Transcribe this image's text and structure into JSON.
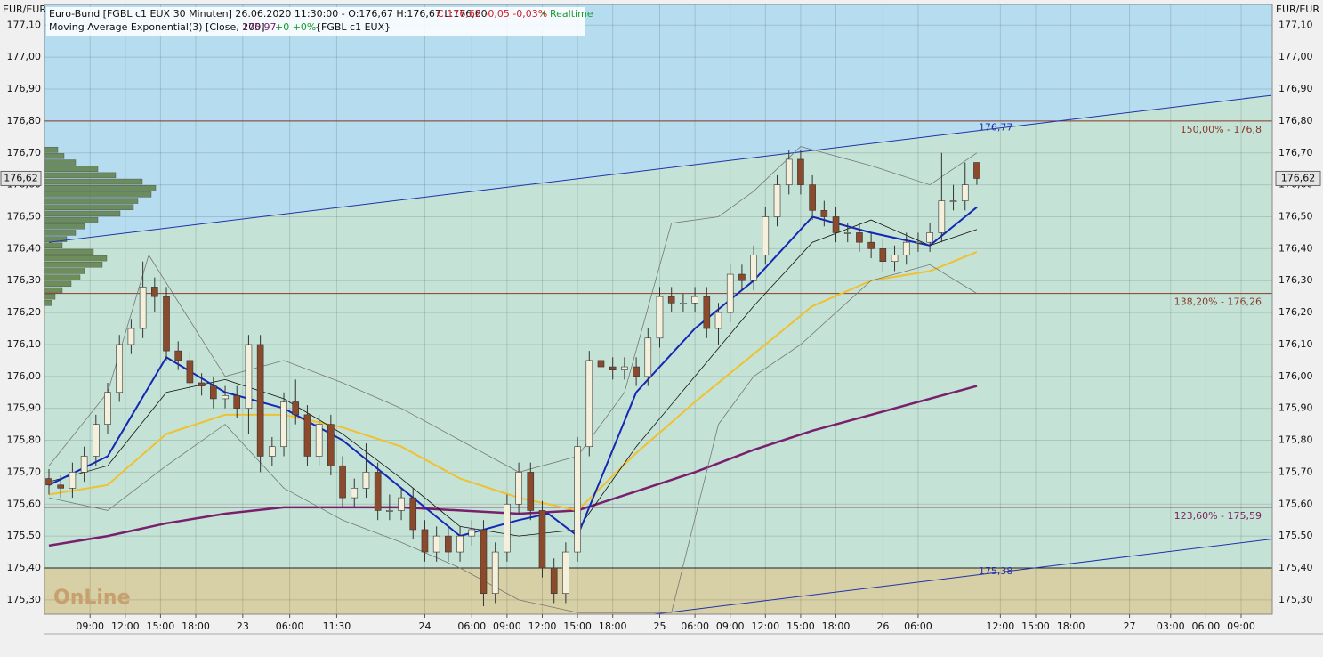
{
  "chart_data": {
    "type": "candlestick",
    "title": "Euro-Bund [FGBL c1 EUX 30 Minuten] 26.06.2020 11:30:00 - O:176,67 H:176,67 L:176,60",
    "title_close": "C:176,62 -0,05 -0,03%",
    "title_status": "• Realtime",
    "subtitle": "Moving Average Exponential(3) [Close, 200]",
    "subtitle_value": "175,97",
    "subtitle_change": "+0 +0%",
    "subtitle_symbol": "{FGBL c1 EUX}",
    "axis_unit": "EUR/EUR",
    "last_price_label": "176,62",
    "logo": "OnLine",
    "ylim": [
      175.255,
      177.165
    ],
    "yticks": [
      {
        "value": 175.3,
        "label": "175,30"
      },
      {
        "value": 175.4,
        "label": "175,40"
      },
      {
        "value": 175.5,
        "label": "175,50"
      },
      {
        "value": 175.6,
        "label": "175,60"
      },
      {
        "value": 175.7,
        "label": "175,70"
      },
      {
        "value": 175.8,
        "label": "175,80"
      },
      {
        "value": 175.9,
        "label": "175,90"
      },
      {
        "value": 176,
        "label": "176,00"
      },
      {
        "value": 176.1,
        "label": "176,10"
      },
      {
        "value": 176.2,
        "label": "176,20"
      },
      {
        "value": 176.3,
        "label": "176,30"
      },
      {
        "value": 176.4,
        "label": "176,40"
      },
      {
        "value": 176.5,
        "label": "176,50"
      },
      {
        "value": 176.6,
        "label": "176,60"
      },
      {
        "value": 176.7,
        "label": "176,70"
      },
      {
        "value": 176.8,
        "label": "176,80"
      },
      {
        "value": 176.9,
        "label": "176,90"
      },
      {
        "value": 177,
        "label": "177,00"
      },
      {
        "value": 177.1,
        "label": "177,10"
      }
    ],
    "xlim": [
      0,
      208
    ],
    "xticks": [
      {
        "value": 7,
        "label": "09:00"
      },
      {
        "value": 13,
        "label": "12:00"
      },
      {
        "value": 19,
        "label": "15:00"
      },
      {
        "value": 25,
        "label": "18:00"
      },
      {
        "value": 33,
        "label": "23"
      },
      {
        "value": 41,
        "label": "06:00"
      },
      {
        "value": 49,
        "label": "11:30"
      },
      {
        "value": 64,
        "label": "24"
      },
      {
        "value": 72,
        "label": "06:00"
      },
      {
        "value": 78,
        "label": "09:00"
      },
      {
        "value": 84,
        "label": "12:00"
      },
      {
        "value": 90,
        "label": "15:00"
      },
      {
        "value": 96,
        "label": "18:00"
      },
      {
        "value": 104,
        "label": "25"
      },
      {
        "value": 110,
        "label": "06:00"
      },
      {
        "value": 116,
        "label": "09:00"
      },
      {
        "value": 122,
        "label": "12:00"
      },
      {
        "value": 128,
        "label": "15:00"
      },
      {
        "value": 134,
        "label": "18:00"
      },
      {
        "value": 142,
        "label": "26"
      },
      {
        "value": 148,
        "label": "06:00"
      },
      {
        "value": 162,
        "label": "12:00"
      },
      {
        "value": 168,
        "label": "15:00"
      },
      {
        "value": 174,
        "label": "18:00"
      },
      {
        "value": 184,
        "label": "27"
      },
      {
        "value": 191,
        "label": "03:00"
      },
      {
        "value": 197,
        "label": "06:00"
      },
      {
        "value": 203,
        "label": "09:00"
      }
    ],
    "grid": true,
    "candles": {
      "x": [
        0,
        2,
        4,
        6,
        8,
        10,
        12,
        14,
        16,
        18,
        20,
        22,
        24,
        26,
        28,
        30,
        32,
        34,
        36,
        38,
        40,
        42,
        44,
        46,
        48,
        50,
        52,
        54,
        56,
        58,
        60,
        62,
        64,
        66,
        68,
        70,
        72,
        74,
        76,
        78,
        80,
        82,
        84,
        86,
        88,
        90,
        92,
        94,
        96,
        98,
        100,
        102,
        104,
        106,
        108,
        110,
        112,
        114,
        116,
        118,
        120,
        122,
        124,
        126,
        128,
        130,
        132,
        134,
        136,
        138,
        140,
        142,
        144,
        146,
        148,
        150,
        152,
        154,
        156,
        158
      ],
      "open": [
        175.68,
        175.66,
        175.65,
        175.7,
        175.75,
        175.85,
        175.95,
        176.1,
        176.15,
        176.28,
        176.25,
        176.08,
        176.05,
        175.98,
        175.97,
        175.93,
        175.94,
        175.9,
        176.1,
        175.75,
        175.78,
        175.92,
        175.88,
        175.75,
        175.85,
        175.72,
        175.62,
        175.65,
        175.7,
        175.58,
        175.58,
        175.62,
        175.52,
        175.45,
        175.5,
        175.45,
        175.5,
        175.52,
        175.32,
        175.45,
        175.6,
        175.7,
        175.58,
        175.4,
        175.32,
        175.45,
        175.78,
        176.05,
        176.03,
        176.02,
        176.03,
        176.0,
        176.12,
        176.25,
        176.23,
        176.23,
        176.25,
        176.15,
        176.2,
        176.32,
        176.3,
        176.38,
        176.5,
        176.6,
        176.68,
        176.6,
        176.52,
        176.5,
        176.45,
        176.45,
        176.42,
        176.4,
        176.36,
        176.38,
        176.42,
        176.42,
        176.45,
        176.55,
        176.55,
        176.67
      ],
      "high": [
        175.71,
        175.69,
        175.73,
        175.78,
        175.88,
        175.98,
        176.13,
        176.18,
        176.36,
        176.31,
        176.28,
        176.11,
        176.08,
        176.01,
        176.0,
        175.97,
        175.97,
        176.13,
        176.13,
        175.81,
        175.95,
        175.99,
        175.91,
        175.88,
        175.88,
        175.75,
        175.68,
        175.79,
        175.73,
        175.63,
        175.65,
        175.65,
        175.55,
        175.53,
        175.53,
        175.53,
        175.55,
        175.55,
        175.48,
        175.63,
        175.73,
        175.73,
        175.61,
        175.43,
        175.48,
        175.81,
        176.08,
        176.11,
        176.06,
        176.06,
        176.06,
        176.15,
        176.28,
        176.28,
        176.26,
        176.28,
        176.28,
        176.23,
        176.35,
        176.35,
        176.41,
        176.53,
        176.63,
        176.71,
        176.71,
        176.63,
        176.55,
        176.53,
        176.48,
        176.48,
        176.45,
        176.43,
        176.41,
        176.45,
        176.45,
        176.48,
        176.7,
        176.6,
        176.67,
        176.67
      ],
      "low": [
        175.63,
        175.62,
        175.62,
        175.67,
        175.72,
        175.82,
        175.92,
        176.07,
        176.12,
        176.2,
        176.05,
        176.02,
        175.95,
        175.94,
        175.9,
        175.9,
        175.87,
        175.82,
        175.7,
        175.72,
        175.75,
        175.85,
        175.72,
        175.72,
        175.69,
        175.59,
        175.59,
        175.62,
        175.55,
        175.55,
        175.55,
        175.49,
        175.42,
        175.42,
        175.42,
        175.42,
        175.47,
        175.28,
        175.29,
        175.42,
        175.57,
        175.55,
        175.37,
        175.29,
        175.29,
        175.42,
        175.75,
        176.0,
        175.99,
        175.99,
        175.97,
        175.97,
        176.09,
        176.2,
        176.2,
        176.2,
        176.12,
        176.1,
        176.17,
        176.27,
        176.27,
        176.35,
        176.47,
        176.57,
        176.57,
        176.49,
        176.47,
        176.42,
        176.42,
        176.39,
        176.37,
        176.33,
        176.33,
        176.35,
        176.39,
        176.39,
        176.42,
        176.52,
        176.52,
        176.6
      ],
      "close": [
        175.66,
        175.65,
        175.7,
        175.75,
        175.85,
        175.95,
        176.1,
        176.15,
        176.28,
        176.25,
        176.08,
        176.05,
        175.98,
        175.97,
        175.93,
        175.94,
        175.9,
        176.1,
        175.75,
        175.78,
        175.92,
        175.88,
        175.75,
        175.85,
        175.72,
        175.62,
        175.65,
        175.7,
        175.58,
        175.58,
        175.62,
        175.52,
        175.45,
        175.5,
        175.45,
        175.5,
        175.52,
        175.32,
        175.45,
        175.6,
        175.7,
        175.58,
        175.4,
        175.32,
        175.45,
        175.78,
        176.05,
        176.03,
        176.02,
        176.03,
        176.0,
        176.12,
        176.25,
        176.23,
        176.23,
        176.25,
        176.15,
        176.2,
        176.32,
        176.3,
        176.38,
        176.5,
        176.6,
        176.68,
        176.6,
        176.52,
        176.5,
        176.45,
        176.45,
        176.42,
        176.4,
        176.36,
        176.38,
        176.42,
        176.42,
        176.45,
        176.55,
        176.55,
        176.6,
        176.62
      ],
      "up_color": "#f4f0dc",
      "down_color": "#8b4a2b"
    },
    "series": [
      {
        "color": "#7a1f6e",
        "width": 2.5,
        "x": [
          0,
          10,
          20,
          30,
          40,
          50,
          60,
          70,
          80,
          90,
          100,
          110,
          120,
          130,
          140,
          150,
          158
        ],
        "values": [
          175.47,
          175.5,
          175.54,
          175.57,
          175.59,
          175.59,
          175.59,
          175.58,
          175.57,
          175.58,
          175.64,
          175.7,
          175.77,
          175.83,
          175.88,
          175.93,
          175.97
        ]
      },
      {
        "color": "#f0c030",
        "width": 2,
        "x": [
          0,
          10,
          20,
          30,
          40,
          50,
          60,
          70,
          80,
          90,
          100,
          110,
          120,
          130,
          140,
          150,
          158
        ],
        "values": [
          175.63,
          175.66,
          175.82,
          175.88,
          175.88,
          175.84,
          175.78,
          175.68,
          175.62,
          175.58,
          175.76,
          175.92,
          176.07,
          176.22,
          176.3,
          176.33,
          176.39
        ]
      },
      {
        "color": "#777777",
        "width": 0.8,
        "x": [
          0,
          10,
          17,
          30,
          40,
          50,
          60,
          70,
          80,
          90,
          98,
          106,
          114,
          120,
          128,
          140,
          150,
          158
        ],
        "values": [
          175.72,
          175.95,
          176.38,
          176.0,
          176.05,
          175.98,
          175.9,
          175.8,
          175.7,
          175.75,
          175.95,
          176.48,
          176.5,
          176.58,
          176.72,
          176.66,
          176.6,
          176.7
        ]
      },
      {
        "color": "#777777",
        "width": 0.8,
        "x": [
          0,
          10,
          20,
          30,
          40,
          50,
          60,
          70,
          80,
          90,
          98,
          106,
          114,
          120,
          128,
          140,
          150,
          158
        ],
        "values": [
          175.62,
          175.58,
          175.72,
          175.85,
          175.65,
          175.55,
          175.48,
          175.4,
          175.3,
          175.26,
          175.26,
          175.26,
          175.85,
          176.0,
          176.1,
          176.3,
          176.35,
          176.26
        ]
      },
      {
        "color": "#111111",
        "width": 0.8,
        "x": [
          0,
          10,
          20,
          30,
          40,
          50,
          60,
          70,
          80,
          90,
          100,
          110,
          120,
          130,
          140,
          150,
          158
        ],
        "values": [
          175.67,
          175.72,
          175.95,
          175.99,
          175.93,
          175.82,
          175.68,
          175.53,
          175.5,
          175.52,
          175.78,
          176.0,
          176.22,
          176.42,
          176.49,
          176.41,
          176.46
        ]
      },
      {
        "color": "#1428b4",
        "width": 2,
        "x": [
          0,
          10,
          20,
          30,
          40,
          50,
          60,
          70,
          80,
          85,
          90,
          100,
          110,
          120,
          130,
          140,
          150,
          158
        ],
        "values": [
          175.66,
          175.75,
          176.06,
          175.95,
          175.9,
          175.8,
          175.65,
          175.5,
          175.55,
          175.57,
          175.5,
          175.95,
          176.15,
          176.3,
          176.5,
          176.45,
          176.41,
          176.53
        ]
      }
    ],
    "trendlines": [
      {
        "x": [
          0,
          208
        ],
        "values": [
          176.42,
          176.88
        ],
        "color": "#1f33a8",
        "label": "176,77",
        "label_x": 158,
        "label_value": 176.77
      },
      {
        "x": [
          103,
          208
        ],
        "values": [
          175.255,
          175.49
        ],
        "color": "#1f33a8",
        "label": "175,38",
        "label_x": 158,
        "label_value": 175.38
      }
    ],
    "levels": [
      {
        "value": 176.8,
        "label": "150,00% - 176,8",
        "color": "#8b3a2a"
      },
      {
        "value": 176.26,
        "label": "138,20% - 176,26",
        "color": "#8b3a2a"
      },
      {
        "value": 175.59,
        "label": "123,60% - 175,59",
        "color": "#7a1f5c"
      },
      {
        "value": 175.4,
        "color": "#222222"
      }
    ],
    "volume_profile": {
      "prices": [
        176.71,
        176.69,
        176.67,
        176.65,
        176.63,
        176.61,
        176.59,
        176.57,
        176.55,
        176.53,
        176.51,
        176.49,
        176.47,
        176.45,
        176.43,
        176.41,
        176.39,
        176.37,
        176.35,
        176.33,
        176.31,
        176.29,
        176.27,
        176.25,
        176.23
      ],
      "values": [
        15,
        22,
        35,
        60,
        80,
        110,
        125,
        120,
        105,
        100,
        85,
        60,
        45,
        35,
        25,
        20,
        55,
        70,
        65,
        45,
        40,
        30,
        20,
        12,
        8
      ],
      "color": "#5e7f45"
    }
  }
}
